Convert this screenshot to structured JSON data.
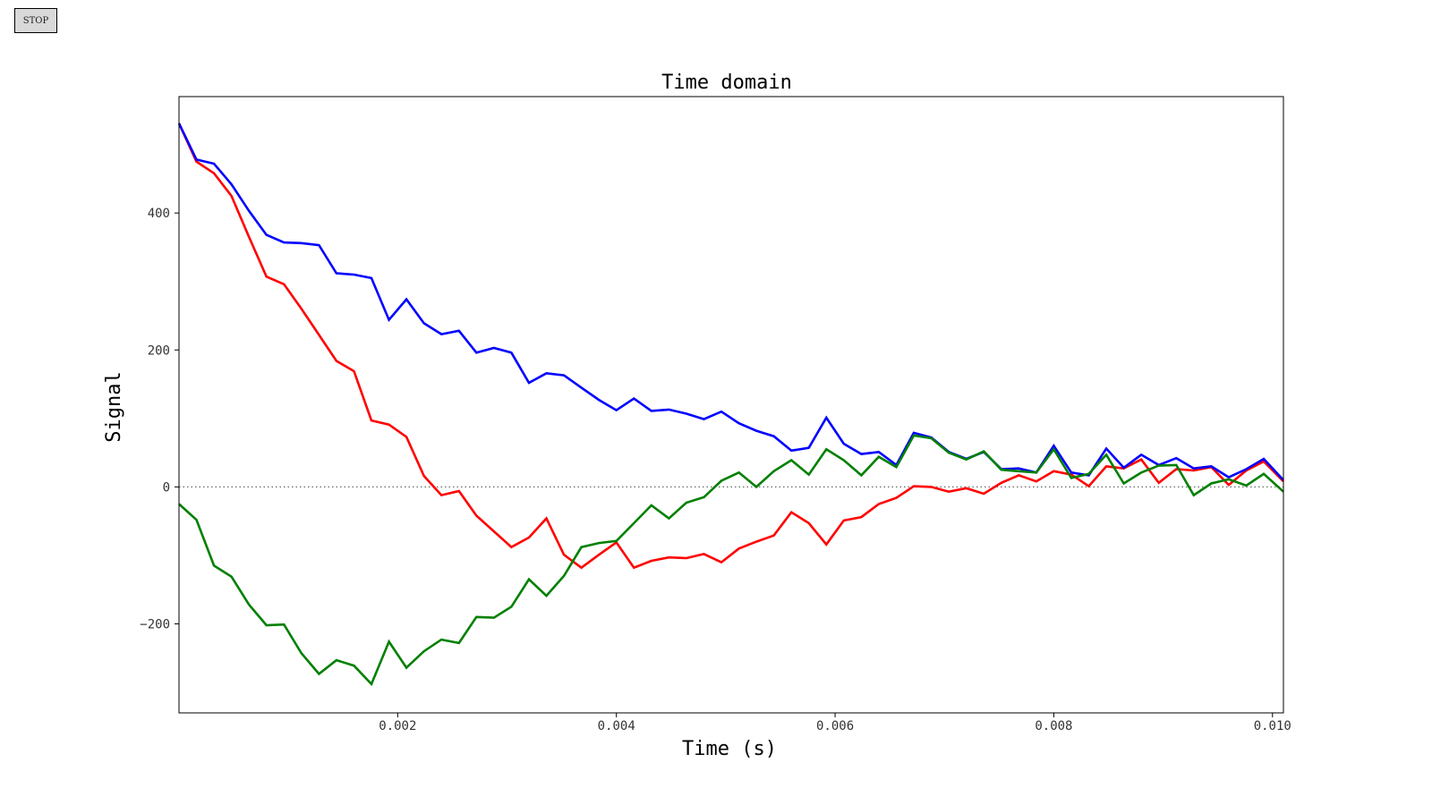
{
  "controls": {
    "stop_label": "STOP"
  },
  "chart_data": {
    "type": "line",
    "title": "Time domain",
    "xlabel": "Time (s)",
    "ylabel": "Signal",
    "xlim": [
      0.0,
      0.0101
    ],
    "ylim": [
      -330,
      570
    ],
    "xticks": [
      0.002,
      0.004,
      0.006,
      0.008,
      0.01
    ],
    "xtick_labels": [
      "0.002",
      "0.004",
      "0.006",
      "0.008",
      "0.010"
    ],
    "yticks": [
      -200,
      0,
      200,
      400
    ],
    "ytick_labels": [
      "−200",
      "0",
      "200",
      "400"
    ],
    "reference_line": {
      "y": 0,
      "style": "dotted",
      "color": "#777777"
    },
    "grid": false,
    "legend": false,
    "x": [
      0.0,
      0.00016,
      0.00032,
      0.00048,
      0.00064,
      0.0008,
      0.00096,
      0.00112,
      0.00128,
      0.00144,
      0.0016,
      0.00176,
      0.00192,
      0.00208,
      0.00224,
      0.0024,
      0.00256,
      0.00272,
      0.00288,
      0.00304,
      0.0032,
      0.00336,
      0.00352,
      0.00368,
      0.00384,
      0.004,
      0.00416,
      0.00432,
      0.00448,
      0.00464,
      0.0048,
      0.00496,
      0.00512,
      0.00528,
      0.00544,
      0.0056,
      0.00576,
      0.00592,
      0.00608,
      0.00624,
      0.0064,
      0.00656,
      0.00672,
      0.00688,
      0.00704,
      0.0072,
      0.00736,
      0.00752,
      0.00768,
      0.00784,
      0.008,
      0.00816,
      0.00832,
      0.00848,
      0.00864,
      0.0088,
      0.00896,
      0.00912,
      0.00928,
      0.00944,
      0.0096,
      0.00976,
      0.00992,
      0.0101
    ],
    "series": [
      {
        "color": "#ff0000",
        "values": [
          531,
          475,
          458,
          425,
          365,
          307,
          296,
          260,
          222,
          184,
          169,
          97,
          91,
          73,
          16,
          -12,
          -6,
          -42,
          -65,
          -88,
          -74,
          -46,
          -99,
          -118,
          -99,
          -81,
          -118,
          -108,
          -103,
          -104,
          -98,
          -110,
          -90,
          -80,
          -71,
          -37,
          -53,
          -84,
          -49,
          -44,
          -25,
          -16,
          1,
          0,
          -7,
          -2,
          -10,
          6,
          17,
          8,
          23,
          18,
          1,
          30,
          27,
          40,
          6,
          26,
          24,
          29,
          3,
          24,
          37,
          8
        ]
      },
      {
        "color": "#0000ff",
        "values": [
          531,
          478,
          472,
          442,
          403,
          368,
          357,
          356,
          353,
          312,
          310,
          305,
          244,
          274,
          239,
          223,
          228,
          196,
          203,
          196,
          152,
          166,
          163,
          145,
          127,
          112,
          129,
          111,
          113,
          107,
          99,
          110,
          93,
          82,
          74,
          53,
          57,
          101,
          63,
          48,
          51,
          32,
          79,
          72,
          51,
          41,
          51,
          26,
          27,
          21,
          60,
          21,
          17,
          56,
          28,
          47,
          32,
          42,
          27,
          30,
          14,
          26,
          41,
          10
        ]
      },
      {
        "color": "#008000",
        "values": [
          -25,
          -48,
          -115,
          -131,
          -172,
          -202,
          -201,
          -243,
          -273,
          -253,
          -261,
          -288,
          -226,
          -264,
          -240,
          -223,
          -228,
          -190,
          -191,
          -175,
          -135,
          -159,
          -130,
          -88,
          -82,
          -79,
          -53,
          -27,
          -46,
          -23,
          -15,
          9,
          21,
          0,
          23,
          39,
          18,
          55,
          39,
          17,
          44,
          29,
          75,
          71,
          50,
          40,
          52,
          25,
          23,
          21,
          55,
          13,
          19,
          47,
          5,
          21,
          31,
          32,
          -12,
          5,
          11,
          2,
          19,
          -7
        ]
      }
    ]
  }
}
